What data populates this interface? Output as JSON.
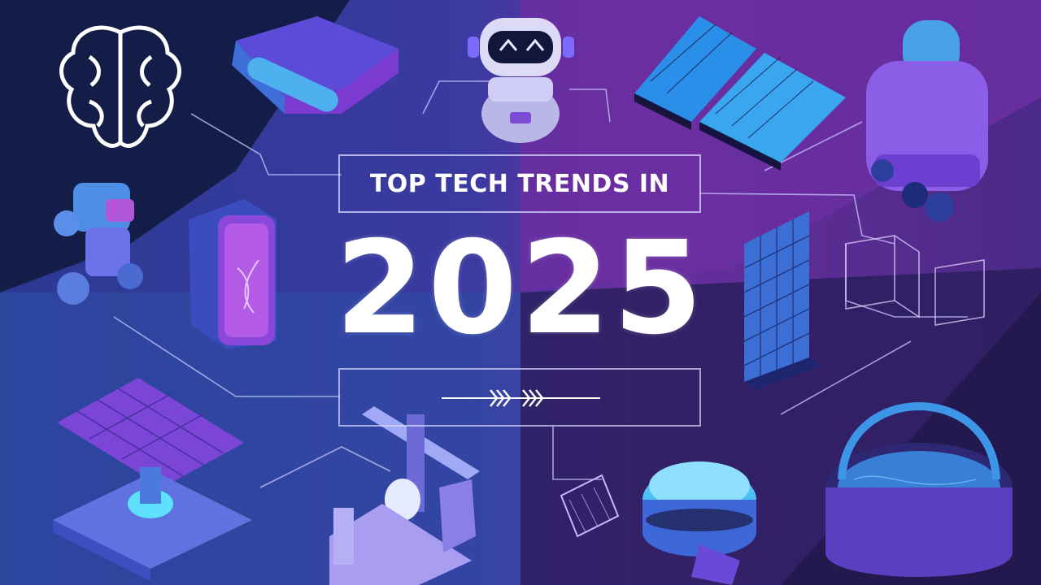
{
  "headline": {
    "prefix": "TOP TECH TRENDS IN",
    "year": "2025"
  },
  "palette": {
    "deep_navy": "#141b45",
    "royal_blue": "#2f3d9a",
    "violet": "#5a2d8f",
    "magenta": "#8e3bb5",
    "cyan_accent": "#4fd4ff",
    "text": "#ffffff"
  },
  "illustrations": [
    "brain-icon",
    "vr-headset",
    "robot-head",
    "solar-panels",
    "humanoid-robot",
    "wheeled-robot",
    "smartphone",
    "solar-array-device",
    "robotic-arm",
    "smart-speaker",
    "circuit-lines",
    "vertical-solar-panel",
    "water-tank"
  ]
}
